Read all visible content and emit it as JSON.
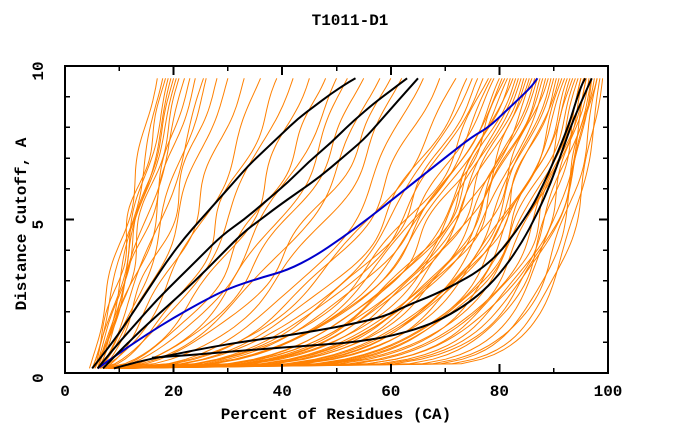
{
  "window": {
    "background": "#ffffff"
  },
  "chart_data": {
    "type": "line",
    "title": "T1011-D1",
    "xlabel": "Percent of Residues (CA)",
    "ylabel": "Distance Cutoff, A",
    "xlim": [
      0,
      100
    ],
    "ylim": [
      0,
      10
    ],
    "x_major_ticks": [
      0,
      20,
      40,
      60,
      80,
      100
    ],
    "x_minor_ticks": [
      10,
      30,
      50,
      70,
      90
    ],
    "y_major_ticks": [
      0,
      5,
      10
    ],
    "y_minor_ticks": [
      1,
      2,
      3,
      4,
      6,
      7,
      8,
      9
    ],
    "grid": false,
    "legend": "none",
    "frame": true,
    "colors": {
      "ensemble": "#FF8000",
      "reference_black": "#000000",
      "highlight_blue": "#0000CC",
      "axis": "#000000",
      "text": "#000000"
    },
    "named_series": [
      {
        "name": "black-steep-1",
        "color": "#000000",
        "width": 2,
        "points": [
          [
            5,
            0.15
          ],
          [
            7,
            0.6
          ],
          [
            10,
            1.3
          ],
          [
            13,
            2.1
          ],
          [
            16,
            2.9
          ],
          [
            19,
            3.7
          ],
          [
            22,
            4.4
          ],
          [
            25,
            5.0
          ],
          [
            28,
            5.6
          ],
          [
            31,
            6.2
          ],
          [
            34,
            6.8
          ],
          [
            37,
            7.3
          ],
          [
            40,
            7.8
          ],
          [
            43,
            8.3
          ],
          [
            46,
            8.7
          ],
          [
            49,
            9.1
          ],
          [
            52,
            9.45
          ],
          [
            53.5,
            9.6
          ]
        ]
      },
      {
        "name": "black-steep-2",
        "color": "#000000",
        "width": 2,
        "points": [
          [
            6,
            0.15
          ],
          [
            9,
            0.8
          ],
          [
            13,
            1.6
          ],
          [
            17,
            2.4
          ],
          [
            21,
            3.1
          ],
          [
            25,
            3.8
          ],
          [
            29,
            4.5
          ],
          [
            33,
            5.0
          ],
          [
            37,
            5.6
          ],
          [
            41,
            6.2
          ],
          [
            45,
            6.9
          ],
          [
            49,
            7.5
          ],
          [
            53,
            8.2
          ],
          [
            57,
            8.8
          ],
          [
            60,
            9.2
          ],
          [
            63,
            9.6
          ]
        ]
      },
      {
        "name": "black-steep-3",
        "color": "#000000",
        "width": 2,
        "points": [
          [
            7,
            0.15
          ],
          [
            10,
            0.7
          ],
          [
            14,
            1.4
          ],
          [
            19,
            2.2
          ],
          [
            24,
            3.0
          ],
          [
            29,
            3.9
          ],
          [
            33,
            4.6
          ],
          [
            36,
            5.0
          ],
          [
            39,
            5.4
          ],
          [
            43,
            5.9
          ],
          [
            47,
            6.4
          ],
          [
            51,
            7.0
          ],
          [
            55,
            7.6
          ],
          [
            58,
            8.2
          ],
          [
            61,
            8.8
          ],
          [
            63.5,
            9.3
          ],
          [
            65,
            9.6
          ]
        ]
      },
      {
        "name": "black-low-diagonal",
        "color": "#000000",
        "width": 2,
        "points": [
          [
            16,
            0.5
          ],
          [
            24,
            0.6
          ],
          [
            32,
            0.72
          ],
          [
            40,
            0.83
          ],
          [
            48,
            0.93
          ],
          [
            54,
            1.02
          ],
          [
            60,
            1.2
          ],
          [
            66,
            1.5
          ],
          [
            71,
            1.9
          ],
          [
            76,
            2.5
          ],
          [
            80,
            3.2
          ],
          [
            84,
            4.2
          ],
          [
            87,
            5.2
          ],
          [
            89.5,
            6.2
          ],
          [
            91.5,
            7.2
          ],
          [
            93.5,
            8.2
          ],
          [
            95.5,
            9.0
          ],
          [
            97,
            9.6
          ]
        ]
      },
      {
        "name": "black-band-reference",
        "color": "#000000",
        "width": 2,
        "points": [
          [
            9,
            0.15
          ],
          [
            14,
            0.4
          ],
          [
            20,
            0.6
          ],
          [
            27,
            0.85
          ],
          [
            34,
            1.05
          ],
          [
            40,
            1.2
          ],
          [
            47,
            1.4
          ],
          [
            53,
            1.6
          ],
          [
            59,
            1.85
          ],
          [
            63,
            2.2
          ],
          [
            68,
            2.55
          ],
          [
            72,
            2.9
          ],
          [
            76,
            3.3
          ],
          [
            80,
            3.9
          ],
          [
            83,
            4.6
          ],
          [
            86,
            5.4
          ],
          [
            88,
            6.1
          ],
          [
            90,
            6.9
          ],
          [
            91.5,
            7.5
          ],
          [
            93,
            8.2
          ],
          [
            94.2,
            8.9
          ],
          [
            95.2,
            9.4
          ],
          [
            95.8,
            9.6
          ]
        ]
      },
      {
        "name": "blue-highlight",
        "color": "#0000CC",
        "width": 2,
        "points": [
          [
            6,
            0.15
          ],
          [
            10,
            0.65
          ],
          [
            15,
            1.25
          ],
          [
            20,
            1.8
          ],
          [
            25,
            2.3
          ],
          [
            30,
            2.75
          ],
          [
            36,
            3.1
          ],
          [
            41,
            3.35
          ],
          [
            46,
            3.8
          ],
          [
            51,
            4.4
          ],
          [
            56,
            5.05
          ],
          [
            61,
            5.75
          ],
          [
            66,
            6.45
          ],
          [
            71,
            7.15
          ],
          [
            75,
            7.7
          ],
          [
            78,
            8.0
          ],
          [
            81,
            8.5
          ],
          [
            84,
            9.0
          ],
          [
            86,
            9.35
          ],
          [
            87,
            9.6
          ]
        ]
      }
    ],
    "ensemble": {
      "color": "#FF8000",
      "width": 1,
      "d_start": 0.15,
      "d_end": 9.6,
      "curve_params_format": [
        "x_at_bottom",
        "x_at_top",
        "shape_exponent",
        "wiggle_amp",
        "wiggle_freq",
        "wiggle_phase"
      ],
      "curves": [
        [
          4.5,
          17,
          0.95,
          0.8,
          2.2,
          0.3
        ],
        [
          5,
          18,
          0.9,
          0.7,
          1.8,
          1.2
        ],
        [
          5.5,
          18.5,
          1.0,
          0.9,
          2.6,
          2.1
        ],
        [
          5,
          19,
          0.85,
          0.8,
          2.0,
          4.0
        ],
        [
          6,
          19.5,
          0.92,
          0.9,
          1.5,
          0.8
        ],
        [
          5.5,
          20,
          0.88,
          0.7,
          2.4,
          2.9
        ],
        [
          6,
          20.5,
          0.95,
          0.8,
          1.9,
          5.1
        ],
        [
          6.5,
          21,
          0.9,
          1.0,
          2.2,
          3.6
        ],
        [
          5,
          22,
          0.8,
          0.8,
          1.6,
          1.0
        ],
        [
          5.5,
          23,
          0.88,
          0.8,
          2.5,
          5.6
        ],
        [
          6,
          24,
          0.85,
          1.1,
          2.0,
          2.4
        ],
        [
          6.2,
          25.5,
          0.8,
          0.9,
          1.4,
          2.0
        ],
        [
          6.5,
          26,
          0.78,
          1.0,
          1.7,
          4.4
        ],
        [
          7,
          28,
          0.82,
          1.2,
          2.3,
          0.6
        ],
        [
          6,
          30,
          0.75,
          1.1,
          1.9,
          3.1
        ],
        [
          7,
          33,
          0.7,
          1.3,
          2.1,
          1.7
        ],
        [
          6,
          36,
          0.65,
          1.3,
          1.8,
          0.5
        ],
        [
          7,
          39,
          0.6,
          1.5,
          2.2,
          2.8
        ],
        [
          6.5,
          42,
          0.62,
          1.4,
          1.5,
          4.6
        ],
        [
          7,
          45,
          0.55,
          1.6,
          2.0,
          1.3
        ],
        [
          8,
          48,
          0.58,
          1.4,
          2.4,
          3.9
        ],
        [
          7.5,
          50,
          0.54,
          1.3,
          1.8,
          4.9
        ],
        [
          7.5,
          52,
          0.5,
          1.7,
          1.7,
          0.9
        ],
        [
          8,
          55,
          0.52,
          1.5,
          2.1,
          5.3
        ],
        [
          7,
          58,
          0.48,
          1.6,
          1.6,
          2.2
        ],
        [
          8.5,
          60,
          0.5,
          1.5,
          2.3,
          4.1
        ],
        [
          8,
          62,
          0.45,
          1.6,
          1.9,
          0.2
        ],
        [
          9,
          66,
          0.42,
          1.7,
          1.5,
          3.3
        ],
        [
          8.5,
          69,
          0.4,
          1.6,
          2.0,
          1.5
        ],
        [
          8,
          72,
          0.42,
          1.5,
          1.7,
          0.4
        ],
        [
          9,
          74,
          0.4,
          1.6,
          2.1,
          2.6
        ],
        [
          8,
          75,
          0.38,
          1.3,
          1.5,
          4.8
        ],
        [
          9,
          76,
          0.36,
          1.5,
          2.3,
          1.1
        ],
        [
          10,
          77,
          0.38,
          1.4,
          1.8,
          3.5
        ],
        [
          8,
          78,
          0.35,
          1.6,
          2.0,
          5.7
        ],
        [
          9,
          78.5,
          0.33,
          1.4,
          1.6,
          0.7
        ],
        [
          10,
          79,
          0.36,
          1.2,
          2.2,
          2.3
        ],
        [
          8.5,
          80,
          0.32,
          1.5,
          1.9,
          4.2
        ],
        [
          9,
          80.5,
          0.34,
          1.3,
          1.4,
          0.1
        ],
        [
          10,
          81,
          0.3,
          1.5,
          2.4,
          3.0
        ],
        [
          8,
          81.5,
          0.33,
          1.3,
          1.7,
          5.2
        ],
        [
          9.5,
          82,
          0.28,
          1.6,
          2.0,
          1.8
        ],
        [
          10,
          82.5,
          0.31,
          1.4,
          1.5,
          3.8
        ],
        [
          8,
          83,
          0.29,
          1.5,
          2.2,
          0.9
        ],
        [
          9,
          83.5,
          0.27,
          1.3,
          1.8,
          2.7
        ],
        [
          10,
          84,
          0.3,
          1.5,
          1.6,
          4.5
        ],
        [
          8.5,
          84.5,
          0.26,
          1.6,
          2.1,
          1.4
        ],
        [
          9,
          85,
          0.28,
          1.4,
          1.9,
          3.2
        ],
        [
          10,
          85.5,
          0.25,
          1.2,
          2.3,
          5.5
        ],
        [
          8,
          86,
          0.27,
          1.5,
          1.5,
          0.3
        ],
        [
          9.5,
          86.5,
          0.24,
          1.3,
          2.0,
          2.1
        ],
        [
          10,
          87,
          0.26,
          1.4,
          1.7,
          4.0
        ],
        [
          8,
          87.5,
          0.23,
          1.6,
          2.2,
          1.6
        ],
        [
          9,
          88,
          0.25,
          1.4,
          1.8,
          3.6
        ],
        [
          10,
          88.5,
          0.22,
          1.2,
          1.4,
          5.8
        ],
        [
          8.5,
          89,
          0.24,
          1.5,
          2.1,
          0.6
        ],
        [
          9,
          89.5,
          0.21,
          1.3,
          1.9,
          2.5
        ],
        [
          10,
          90,
          0.23,
          1.4,
          1.6,
          4.3
        ],
        [
          8,
          90.5,
          0.2,
          1.5,
          2.3,
          1.0
        ],
        [
          9.5,
          91,
          0.22,
          1.3,
          1.7,
          3.4
        ],
        [
          10,
          91.5,
          0.19,
          1.2,
          2.0,
          5.0
        ],
        [
          8,
          92,
          0.21,
          1.4,
          1.5,
          0.8
        ],
        [
          9,
          92.5,
          0.18,
          1.3,
          2.2,
          2.9
        ],
        [
          10,
          93,
          0.2,
          1.4,
          1.8,
          4.7
        ],
        [
          8.5,
          93.5,
          0.17,
          1.5,
          1.6,
          1.2
        ],
        [
          9,
          94,
          0.19,
          1.3,
          2.1,
          3.7
        ],
        [
          10,
          94.5,
          0.16,
          1.2,
          1.9,
          5.4
        ],
        [
          8,
          95,
          0.18,
          1.4,
          1.4,
          0.2
        ],
        [
          9.5,
          95.5,
          0.15,
          1.2,
          2.3,
          2.0
        ],
        [
          10,
          96,
          0.17,
          1.3,
          1.7,
          4.4
        ],
        [
          9,
          96.5,
          0.14,
          1.2,
          2.0,
          1.9
        ],
        [
          8,
          97,
          0.15,
          1.1,
          1.8,
          3.9
        ],
        [
          9,
          97.5,
          0.13,
          1.0,
          2.1,
          0.5
        ],
        [
          10,
          98,
          0.14,
          1.0,
          1.6,
          2.4
        ],
        [
          7,
          96,
          0.1,
          0.8,
          1.5,
          1.1
        ],
        [
          8,
          97,
          0.09,
          0.7,
          1.8,
          3.0
        ],
        [
          9,
          98,
          0.1,
          0.8,
          2.0,
          5.2
        ],
        [
          8,
          98.5,
          0.08,
          0.6,
          1.6,
          0.4
        ],
        [
          10,
          99,
          0.09,
          0.7,
          1.9,
          2.2
        ],
        [
          9,
          95,
          0.11,
          0.8,
          2.2,
          4.1
        ]
      ]
    }
  }
}
